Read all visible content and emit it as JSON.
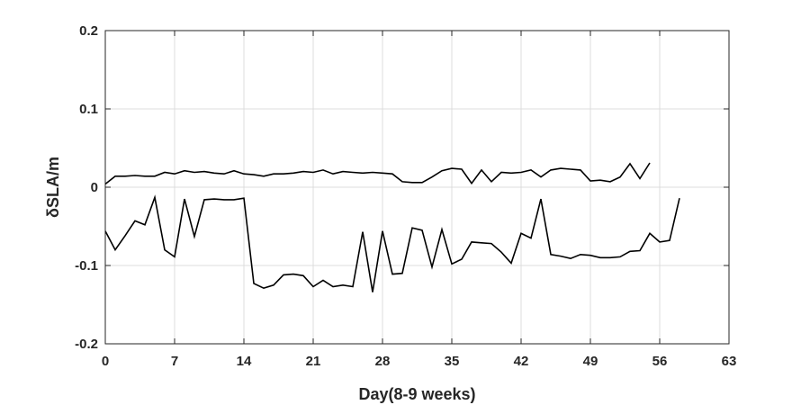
{
  "chart_data": {
    "type": "line",
    "title": "",
    "xlabel": "Day(8-9 weeks)",
    "ylabel": "δSLA/m",
    "xlim": [
      0,
      63
    ],
    "ylim": [
      -0.2,
      0.2
    ],
    "xticks": [
      0,
      7,
      14,
      21,
      28,
      35,
      42,
      49,
      56,
      63
    ],
    "yticks": [
      -0.2,
      -0.1,
      0,
      0.1,
      0.2
    ],
    "xtick_labels": [
      "0",
      "7",
      "14",
      "21",
      "28",
      "35",
      "42",
      "49",
      "56",
      "63"
    ],
    "ytick_labels": [
      "-0.2",
      "-0.1",
      "0",
      "0.1",
      "0.2"
    ],
    "grid": true,
    "line_color": "#000000",
    "series": [
      {
        "x": [
          0,
          1,
          2,
          3,
          4,
          5,
          6,
          7,
          8,
          9,
          10,
          11,
          12,
          13,
          14,
          15,
          16,
          17,
          18,
          19,
          20,
          21,
          22,
          23,
          24,
          25,
          26,
          27,
          28,
          29,
          30,
          31,
          32,
          33,
          34,
          35,
          36,
          37,
          38,
          39,
          40,
          41,
          42,
          43,
          44,
          45,
          46,
          47,
          48,
          49,
          50,
          51,
          52,
          53,
          54,
          55
        ],
        "values": [
          0.004,
          0.014,
          0.014,
          0.015,
          0.014,
          0.014,
          0.019,
          0.017,
          0.021,
          0.019,
          0.02,
          0.018,
          0.017,
          0.021,
          0.017,
          0.016,
          0.014,
          0.017,
          0.017,
          0.018,
          0.02,
          0.019,
          0.022,
          0.017,
          0.02,
          0.019,
          0.018,
          0.019,
          0.018,
          0.017,
          0.007,
          0.006,
          0.006,
          0.013,
          0.021,
          0.024,
          0.023,
          0.005,
          0.022,
          0.007,
          0.019,
          0.018,
          0.019,
          0.022,
          0.013,
          0.022,
          0.024,
          0.023,
          0.022,
          0.008,
          0.009,
          0.007,
          0.013,
          0.03,
          0.011,
          0.031
        ]
      },
      {
        "x": [
          0,
          1,
          2,
          3,
          4,
          5,
          6,
          7,
          8,
          9,
          10,
          11,
          12,
          13,
          14,
          15,
          16,
          17,
          18,
          19,
          20,
          21,
          22,
          23,
          24,
          25,
          26,
          27,
          28,
          29,
          30,
          31,
          32,
          33,
          34,
          35,
          36,
          37,
          38,
          39,
          40,
          41,
          42,
          43,
          44,
          45,
          46,
          47,
          48,
          49,
          50,
          51,
          52,
          53,
          54,
          55,
          56,
          57,
          58
        ],
        "values": [
          -0.056,
          -0.08,
          -0.062,
          -0.043,
          -0.048,
          -0.013,
          -0.08,
          -0.089,
          -0.015,
          -0.063,
          -0.016,
          -0.015,
          -0.016,
          -0.016,
          -0.014,
          -0.123,
          -0.129,
          -0.125,
          -0.112,
          -0.111,
          -0.113,
          -0.127,
          -0.119,
          -0.127,
          -0.125,
          -0.127,
          -0.057,
          -0.134,
          -0.056,
          -0.111,
          -0.11,
          -0.052,
          -0.055,
          -0.102,
          -0.054,
          -0.098,
          -0.092,
          -0.07,
          -0.071,
          -0.072,
          -0.083,
          -0.097,
          -0.059,
          -0.065,
          -0.015,
          -0.086,
          -0.088,
          -0.091,
          -0.086,
          -0.087,
          -0.09,
          -0.09,
          -0.089,
          -0.082,
          -0.081,
          -0.059,
          -0.07,
          -0.068,
          -0.014
        ]
      }
    ]
  }
}
